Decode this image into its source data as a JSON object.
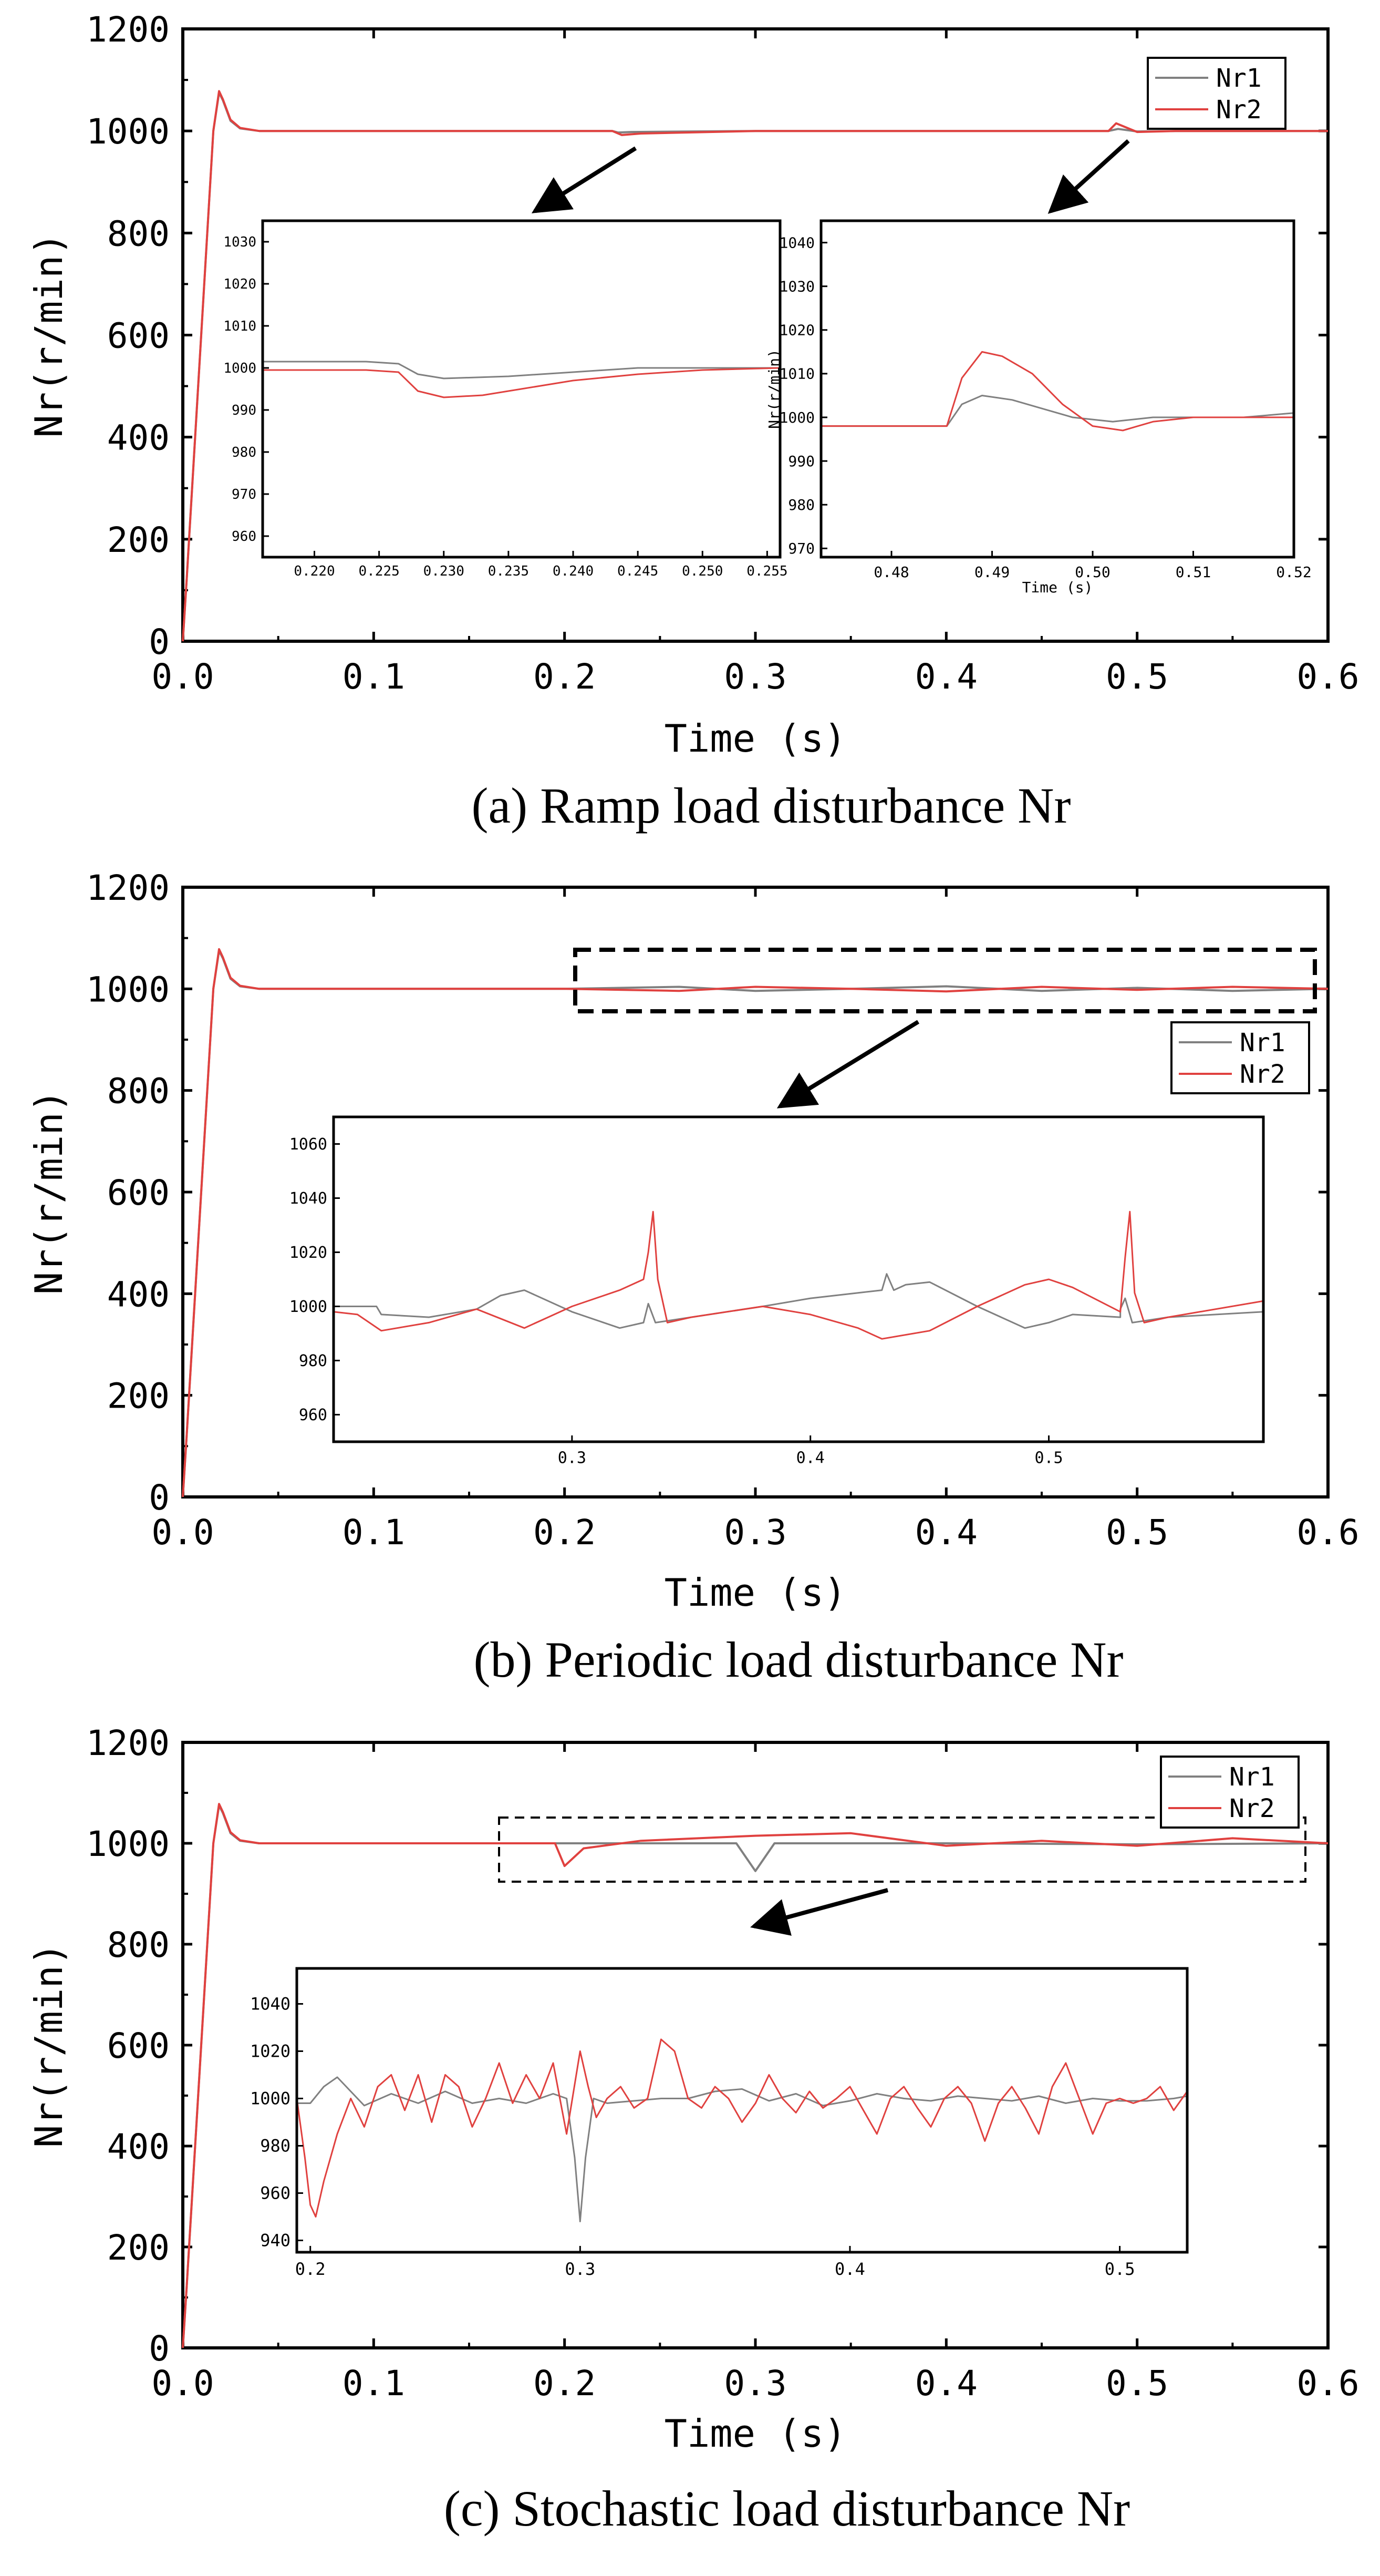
{
  "chart_data": [
    {
      "type": "line",
      "caption": "(a) Ramp load disturbance Nr",
      "xlabel": "Time (s)",
      "ylabel": "Nr(r/min)",
      "xlim": [
        0,
        0.6
      ],
      "ylim": [
        0,
        1200
      ],
      "xticks": [
        "0.0",
        "0.1",
        "0.2",
        "0.3",
        "0.4",
        "0.5",
        "0.6"
      ],
      "yticks": [
        "0",
        "200",
        "400",
        "600",
        "800",
        "1000",
        "1200"
      ],
      "legend": {
        "position": "top-right",
        "entries": [
          "Nr1",
          "Nr2"
        ]
      },
      "series": [
        {
          "name": "Nr1",
          "color": "#808080",
          "x": [
            0,
            0.002,
            0.016,
            0.019,
            0.021,
            0.025,
            0.03,
            0.04,
            0.1,
            0.225,
            0.228,
            0.235,
            0.3,
            0.485,
            0.49,
            0.5,
            0.52,
            0.6
          ],
          "y": [
            0,
            120,
            1000,
            1075,
            1060,
            1020,
            1005,
            1000,
            1000,
            1000,
            997,
            998,
            1000,
            1000,
            1004,
            999,
            1000,
            1000
          ]
        },
        {
          "name": "Nr2",
          "color": "#e0413f",
          "x": [
            0,
            0.002,
            0.016,
            0.019,
            0.021,
            0.025,
            0.03,
            0.04,
            0.1,
            0.225,
            0.23,
            0.24,
            0.3,
            0.485,
            0.489,
            0.5,
            0.52,
            0.6
          ],
          "y": [
            0,
            120,
            1000,
            1078,
            1062,
            1022,
            1006,
            1000,
            1000,
            1000,
            992,
            995,
            1000,
            1000,
            1015,
            998,
            1000,
            1000
          ]
        }
      ],
      "insets": [
        {
          "xlim": [
            0.216,
            0.256
          ],
          "ylim": [
            955,
            1035
          ],
          "xticks": [
            "0.220",
            "0.225",
            "0.230",
            "0.235",
            "0.240",
            "0.245",
            "0.250",
            "0.255"
          ],
          "yticks": [
            "960",
            "970",
            "980",
            "990",
            "1000",
            "1010",
            "1020",
            "1030"
          ],
          "series": [
            {
              "name": "Nr1",
              "color": "#808080",
              "x": [
                0.216,
                0.22,
                0.224,
                0.2265,
                0.228,
                0.23,
                0.235,
                0.24,
                0.245,
                0.25,
                0.256
              ],
              "y": [
                1001.5,
                1001.5,
                1001.5,
                1001,
                998.5,
                997.5,
                998,
                999,
                1000,
                1000,
                1000
              ]
            },
            {
              "name": "Nr2",
              "color": "#e0413f",
              "x": [
                0.216,
                0.22,
                0.224,
                0.2265,
                0.228,
                0.23,
                0.233,
                0.236,
                0.24,
                0.245,
                0.25,
                0.256
              ],
              "y": [
                999.5,
                999.5,
                999.5,
                999,
                994.5,
                993,
                993.5,
                995,
                997,
                998.5,
                999.5,
                1000
              ]
            }
          ]
        },
        {
          "xlim": [
            0.473,
            0.52
          ],
          "ylim": [
            968,
            1045
          ],
          "xlabel": "Time (s)",
          "ylabel": "Nr(r/min)",
          "xticks": [
            "0.48",
            "0.49",
            "0.50",
            "0.51",
            "0.52"
          ],
          "yticks": [
            "970",
            "980",
            "990",
            "1000",
            "1010",
            "1020",
            "1030",
            "1040"
          ],
          "series": [
            {
              "name": "Nr1",
              "color": "#808080",
              "x": [
                0.473,
                0.4855,
                0.487,
                0.489,
                0.492,
                0.495,
                0.498,
                0.502,
                0.506,
                0.51,
                0.515,
                0.52
              ],
              "y": [
                998,
                998,
                1003,
                1005,
                1004,
                1002,
                1000,
                999,
                1000,
                1000,
                1000,
                1001
              ]
            },
            {
              "name": "Nr2",
              "color": "#e0413f",
              "x": [
                0.473,
                0.4855,
                0.487,
                0.489,
                0.491,
                0.494,
                0.497,
                0.5,
                0.503,
                0.506,
                0.51,
                0.515,
                0.52
              ],
              "y": [
                998,
                998,
                1009,
                1015,
                1014,
                1010,
                1003,
                998,
                997,
                999,
                1000,
                1000,
                1000
              ]
            }
          ]
        }
      ]
    },
    {
      "type": "line",
      "caption": "(b) Periodic load disturbance Nr",
      "xlabel": "Time (s)",
      "ylabel": "Nr(r/min)",
      "xlim": [
        0,
        0.6
      ],
      "ylim": [
        0,
        1200
      ],
      "xticks": [
        "0.0",
        "0.1",
        "0.2",
        "0.3",
        "0.4",
        "0.5",
        "0.6"
      ],
      "yticks": [
        "0",
        "200",
        "400",
        "600",
        "800",
        "1000",
        "1200"
      ],
      "legend": {
        "position": "right",
        "entries": [
          "Nr1",
          "Nr2"
        ]
      },
      "series": [
        {
          "name": "Nr1",
          "color": "#808080",
          "x": [
            0,
            0.002,
            0.016,
            0.019,
            0.021,
            0.025,
            0.03,
            0.04,
            0.2,
            0.26,
            0.3,
            0.35,
            0.4,
            0.45,
            0.5,
            0.55,
            0.6
          ],
          "y": [
            0,
            120,
            1000,
            1075,
            1060,
            1020,
            1005,
            1000,
            1000,
            1004,
            996,
            1000,
            1005,
            996,
            1002,
            996,
            1000
          ]
        },
        {
          "name": "Nr2",
          "color": "#e0413f",
          "x": [
            0,
            0.002,
            0.016,
            0.019,
            0.021,
            0.025,
            0.03,
            0.04,
            0.2,
            0.26,
            0.3,
            0.35,
            0.4,
            0.45,
            0.5,
            0.55,
            0.6
          ],
          "y": [
            0,
            120,
            1000,
            1078,
            1062,
            1022,
            1006,
            1000,
            1000,
            996,
            1004,
            1000,
            995,
            1004,
            998,
            1004,
            1000
          ]
        }
      ],
      "insets": [
        {
          "xlim": [
            0.2,
            0.59
          ],
          "ylim": [
            950,
            1070
          ],
          "xticks": [
            "0.3",
            "0.4",
            "0.5"
          ],
          "yticks": [
            "960",
            "980",
            "1000",
            "1020",
            "1040",
            "1060"
          ],
          "series": [
            {
              "name": "Nr1",
              "color": "#808080",
              "x": [
                0.2,
                0.218,
                0.22,
                0.24,
                0.26,
                0.27,
                0.28,
                0.3,
                0.32,
                0.33,
                0.332,
                0.335,
                0.35,
                0.38,
                0.4,
                0.42,
                0.43,
                0.432,
                0.435,
                0.44,
                0.45,
                0.47,
                0.49,
                0.5,
                0.51,
                0.53,
                0.53,
                0.532,
                0.535,
                0.55,
                0.59
              ],
              "y": [
                1000,
                1000,
                997,
                996,
                999,
                1004,
                1006,
                998,
                992,
                994,
                1001,
                994,
                996,
                1000,
                1003,
                1005,
                1006,
                1012,
                1006,
                1008,
                1009,
                1000,
                992,
                994,
                997,
                996,
                999,
                1003,
                994,
                996,
                998
              ]
            },
            {
              "name": "Nr2",
              "color": "#e0413f",
              "x": [
                0.2,
                0.21,
                0.22,
                0.24,
                0.26,
                0.28,
                0.29,
                0.3,
                0.32,
                0.33,
                0.332,
                0.334,
                0.336,
                0.34,
                0.35,
                0.38,
                0.4,
                0.42,
                0.43,
                0.45,
                0.47,
                0.49,
                0.5,
                0.51,
                0.53,
                0.532,
                0.534,
                0.536,
                0.54,
                0.55,
                0.59
              ],
              "y": [
                998,
                997,
                991,
                994,
                999,
                992,
                996,
                1000,
                1006,
                1010,
                1020,
                1035,
                1010,
                994,
                996,
                1000,
                997,
                992,
                988,
                991,
                1000,
                1008,
                1010,
                1007,
                998,
                1018,
                1035,
                1005,
                994,
                996,
                1002
              ]
            }
          ]
        }
      ]
    },
    {
      "type": "line",
      "caption": "(c) Stochastic load disturbance Nr",
      "xlabel": "Time (s)",
      "ylabel": "Nr(r/min)",
      "xlim": [
        0,
        0.6
      ],
      "ylim": [
        0,
        1200
      ],
      "xticks": [
        "0.0",
        "0.1",
        "0.2",
        "0.3",
        "0.4",
        "0.5",
        "0.6"
      ],
      "yticks": [
        "0",
        "200",
        "400",
        "600",
        "800",
        "1000",
        "1200"
      ],
      "legend": {
        "position": "top-right",
        "entries": [
          "Nr1",
          "Nr2"
        ]
      },
      "series": [
        {
          "name": "Nr1",
          "color": "#808080",
          "x": [
            0,
            0.002,
            0.016,
            0.019,
            0.021,
            0.025,
            0.03,
            0.04,
            0.2,
            0.29,
            0.3,
            0.31,
            0.4,
            0.5,
            0.6
          ],
          "y": [
            0,
            120,
            1000,
            1075,
            1060,
            1020,
            1005,
            1000,
            1000,
            1000,
            945,
            1000,
            1000,
            998,
            1000
          ]
        },
        {
          "name": "Nr2",
          "color": "#e0413f",
          "x": [
            0,
            0.002,
            0.016,
            0.019,
            0.021,
            0.025,
            0.03,
            0.04,
            0.195,
            0.2,
            0.21,
            0.24,
            0.3,
            0.35,
            0.4,
            0.45,
            0.5,
            0.55,
            0.6
          ],
          "y": [
            0,
            120,
            1000,
            1078,
            1062,
            1022,
            1006,
            1000,
            1000,
            955,
            990,
            1005,
            1015,
            1020,
            995,
            1005,
            995,
            1010,
            1000
          ]
        }
      ],
      "insets": [
        {
          "xlim": [
            0.195,
            0.525
          ],
          "ylim": [
            935,
            1055
          ],
          "xticks": [
            "0.2",
            "0.3",
            "0.4",
            "0.5"
          ],
          "yticks": [
            "940",
            "960",
            "980",
            "1000",
            "1020",
            "1040"
          ],
          "series": [
            {
              "name": "Nr1",
              "color": "#808080",
              "x": [
                0.195,
                0.2,
                0.205,
                0.21,
                0.215,
                0.22,
                0.23,
                0.24,
                0.25,
                0.26,
                0.27,
                0.28,
                0.29,
                0.295,
                0.298,
                0.3,
                0.302,
                0.305,
                0.31,
                0.32,
                0.33,
                0.34,
                0.35,
                0.36,
                0.37,
                0.38,
                0.39,
                0.4,
                0.41,
                0.42,
                0.43,
                0.44,
                0.45,
                0.46,
                0.47,
                0.48,
                0.49,
                0.5,
                0.51,
                0.52,
                0.525
              ],
              "y": [
                998,
                998,
                1005,
                1009,
                1003,
                997,
                1002,
                998,
                1003,
                998,
                1000,
                998,
                1002,
                1000,
                975,
                948,
                975,
                1000,
                998,
                999,
                1000,
                1000,
                1003,
                1004,
                999,
                1002,
                997,
                999,
                1002,
                1000,
                999,
                1001,
                1000,
                999,
                1001,
                998,
                1000,
                999,
                999,
                1000,
                1001
              ]
            },
            {
              "name": "Nr2",
              "color": "#e0413f",
              "x": [
                0.195,
                0.198,
                0.2,
                0.202,
                0.205,
                0.21,
                0.215,
                0.22,
                0.225,
                0.23,
                0.235,
                0.24,
                0.245,
                0.25,
                0.255,
                0.26,
                0.265,
                0.27,
                0.275,
                0.28,
                0.285,
                0.29,
                0.295,
                0.3,
                0.303,
                0.306,
                0.31,
                0.315,
                0.32,
                0.325,
                0.33,
                0.335,
                0.34,
                0.345,
                0.35,
                0.355,
                0.36,
                0.365,
                0.37,
                0.375,
                0.38,
                0.385,
                0.39,
                0.395,
                0.4,
                0.405,
                0.41,
                0.415,
                0.42,
                0.425,
                0.43,
                0.435,
                0.44,
                0.445,
                0.45,
                0.455,
                0.46,
                0.465,
                0.47,
                0.475,
                0.48,
                0.485,
                0.49,
                0.495,
                0.5,
                0.505,
                0.51,
                0.515,
                0.52,
                0.525
              ],
              "y": [
                1000,
                975,
                955,
                950,
                965,
                985,
                1000,
                988,
                1005,
                1010,
                995,
                1010,
                990,
                1010,
                1005,
                988,
                1000,
                1015,
                998,
                1010,
                1000,
                1015,
                985,
                1020,
                1005,
                992,
                1000,
                1005,
                996,
                1000,
                1025,
                1020,
                1000,
                996,
                1005,
                1000,
                990,
                998,
                1010,
                1000,
                994,
                1003,
                996,
                1000,
                1005,
                995,
                985,
                1000,
                1005,
                996,
                988,
                1000,
                1005,
                998,
                982,
                998,
                1005,
                996,
                985,
                1005,
                1015,
                1000,
                985,
                998,
                1000,
                998,
                1000,
                1005,
                995,
                1003
              ]
            }
          ]
        }
      ]
    }
  ]
}
